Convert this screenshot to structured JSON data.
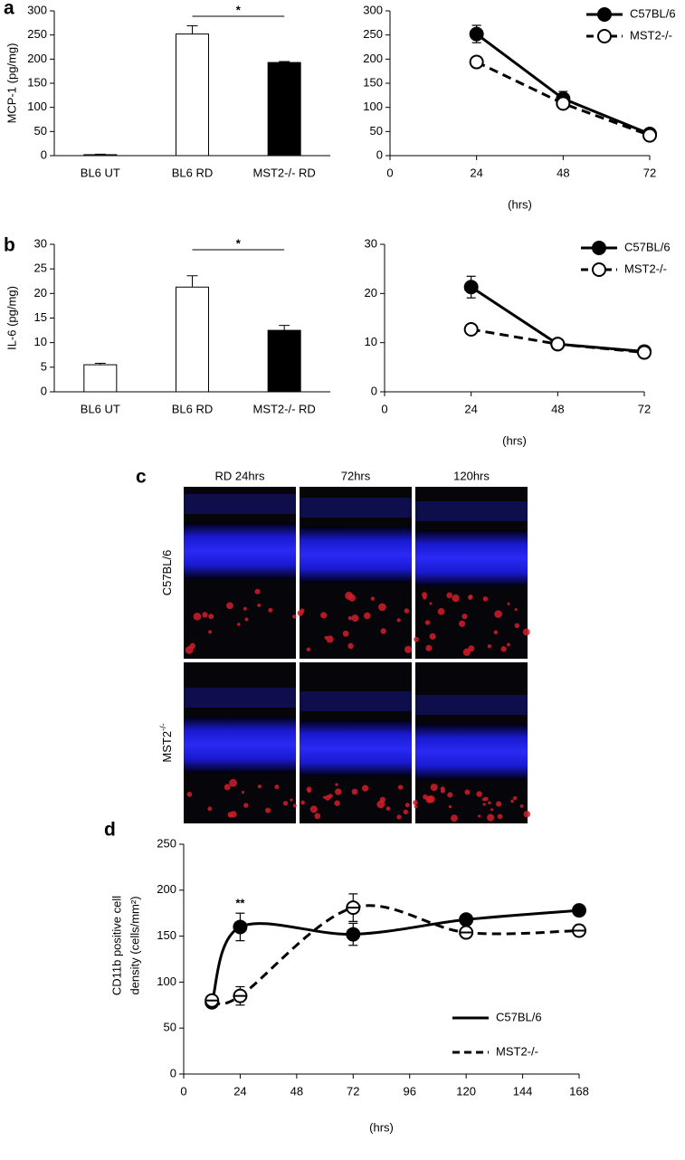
{
  "panel_labels": [
    "a",
    "b",
    "c",
    "d"
  ],
  "image_panel": {
    "columns": [
      "RD 24hrs",
      "72hrs",
      "120hrs"
    ],
    "rows": [
      {
        "base": "C57BL/6",
        "sup": ""
      },
      {
        "base": "MST2",
        "sup": "-/-"
      }
    ]
  },
  "chart_data": [
    {
      "type": "bar",
      "ylabel": "MCP-1 (pg/mg)",
      "categories": [
        "BL6 UT",
        "BL6 RD",
        "MST2-/- RD"
      ],
      "values": [
        2,
        252,
        193
      ],
      "errors": [
        1,
        17,
        2
      ],
      "colors": [
        "#ffffff",
        "#ffffff",
        "#000000"
      ],
      "ylim": [
        0,
        300
      ],
      "yticks": [
        0,
        50,
        100,
        150,
        200,
        250,
        300
      ],
      "annotation": "*"
    },
    {
      "type": "line",
      "xlabel": "(hrs)",
      "x": [
        24,
        48,
        72
      ],
      "xlim": [
        0,
        72
      ],
      "xticks": [
        0,
        24,
        48,
        72
      ],
      "ylim": [
        0,
        300
      ],
      "yticks": [
        0,
        50,
        100,
        150,
        200,
        250,
        300
      ],
      "legend": "upper right",
      "series": [
        {
          "name": "C57BL/6",
          "color": "#000000",
          "marker": "filled",
          "dash": false,
          "values": [
            252,
            118,
            45
          ],
          "errors": [
            18,
            15,
            5
          ]
        },
        {
          "name": "MST2-/-",
          "color": "#000000",
          "marker": "open",
          "dash": true,
          "values": [
            194,
            108,
            42
          ],
          "errors": [
            4,
            10,
            5
          ]
        }
      ]
    },
    {
      "type": "bar",
      "ylabel": "IL-6 (pg/mg)",
      "categories": [
        "BL6 UT",
        "BL6 RD",
        "MST2-/- RD"
      ],
      "values": [
        5.5,
        21.3,
        12.5
      ],
      "errors": [
        0.3,
        2.3,
        1.0
      ],
      "colors": [
        "#ffffff",
        "#ffffff",
        "#000000"
      ],
      "ylim": [
        0,
        30
      ],
      "yticks": [
        0,
        5,
        10,
        15,
        20,
        25,
        30
      ],
      "annotation": "*"
    },
    {
      "type": "line",
      "xlabel": "(hrs)",
      "x": [
        24,
        48,
        72
      ],
      "xlim": [
        0,
        72
      ],
      "xticks": [
        0,
        24,
        48,
        72
      ],
      "ylim": [
        0,
        30
      ],
      "yticks": [
        0,
        10,
        20,
        30
      ],
      "legend": "upper right",
      "series": [
        {
          "name": "C57BL/6",
          "color": "#000000",
          "marker": "filled",
          "dash": false,
          "values": [
            21.3,
            9.7,
            8.2
          ],
          "errors": [
            2.2,
            0.8,
            0.8
          ]
        },
        {
          "name": "MST2-/-",
          "color": "#000000",
          "marker": "open",
          "dash": true,
          "values": [
            12.7,
            9.7,
            8.0
          ],
          "errors": [
            0.6,
            0.6,
            0.6
          ]
        }
      ]
    },
    {
      "type": "line",
      "curve": "smooth",
      "xlabel": "(hrs)",
      "ylabel": [
        "CD11b positive cell",
        "density (cells/mm²)"
      ],
      "x": [
        12,
        24,
        72,
        120,
        168
      ],
      "xlim": [
        0,
        168
      ],
      "xticks": [
        0,
        24,
        48,
        72,
        96,
        120,
        144,
        168
      ],
      "ylim": [
        0,
        250
      ],
      "yticks": [
        0,
        50,
        100,
        150,
        200,
        250
      ],
      "legend": "lower right",
      "annotation": "**",
      "series": [
        {
          "name": "C57BL/6",
          "color": "#000000",
          "marker": "filled",
          "dash": false,
          "values": [
            78,
            160,
            152,
            168,
            178
          ],
          "errors": [
            5,
            15,
            12,
            5,
            4
          ]
        },
        {
          "name": "MST2-/-",
          "color": "#000000",
          "marker": "open-barred",
          "dash": true,
          "values": [
            80,
            85,
            181,
            154,
            156
          ],
          "errors": [
            5,
            10,
            15,
            5,
            6
          ]
        }
      ]
    }
  ]
}
